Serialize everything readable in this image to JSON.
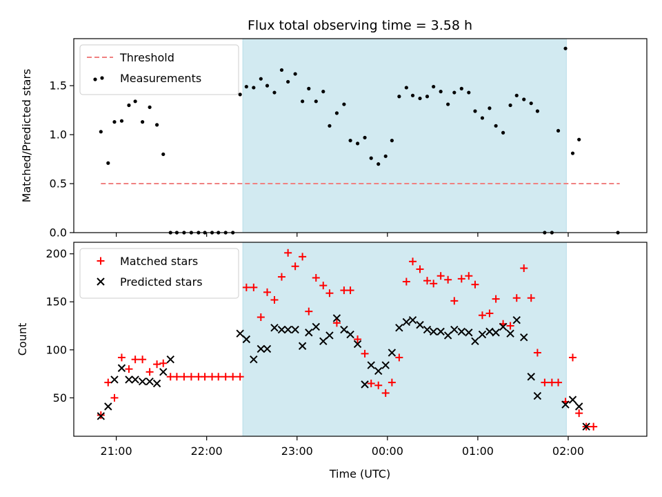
{
  "chart_data": {
    "title": "Flux total observing time = 3.58 h",
    "xlabel": "Time (UTC)",
    "x_axis": {
      "unit": "hours since 20:00 UTC",
      "range": [
        0.53,
        6.87
      ],
      "ticks": [
        {
          "value": 1,
          "label": "21:00"
        },
        {
          "value": 2,
          "label": "22:00"
        },
        {
          "value": 3,
          "label": "23:00"
        },
        {
          "value": 4,
          "label": "00:00"
        },
        {
          "value": 5,
          "label": "01:00"
        },
        {
          "value": 6,
          "label": "02:00"
        }
      ]
    },
    "shaded_interval": {
      "start": 2.4,
      "end": 5.98,
      "color": "#add8e6"
    },
    "panels": [
      {
        "type": "scatter",
        "ylabel": "Matched/Predicted stars",
        "ylim": [
          0,
          1.98
        ],
        "yticks": [
          {
            "value": 0,
            "label": "0.0"
          },
          {
            "value": 0.5,
            "label": "0.5"
          },
          {
            "value": 1.0,
            "label": "1.0"
          },
          {
            "value": 1.5,
            "label": "1.5"
          }
        ],
        "legend": {
          "position": "upper left"
        },
        "threshold": {
          "name": "Threshold",
          "value": 0.5,
          "x_range": [
            0.83,
            6.57
          ],
          "color": "#f08080"
        },
        "series": [
          {
            "name": "Measurements",
            "color": "#000000",
            "marker": "dot",
            "points": [
              [
                0.83,
                1.03
              ],
              [
                0.91,
                0.71
              ],
              [
                0.98,
                1.13
              ],
              [
                1.06,
                1.14
              ],
              [
                1.14,
                1.3
              ],
              [
                1.21,
                1.34
              ],
              [
                1.29,
                1.13
              ],
              [
                1.37,
                1.28
              ],
              [
                1.45,
                1.1
              ],
              [
                1.52,
                0.8
              ],
              [
                1.6,
                0
              ],
              [
                1.67,
                0
              ],
              [
                1.75,
                0
              ],
              [
                1.83,
                0
              ],
              [
                1.91,
                0
              ],
              [
                1.98,
                0
              ],
              [
                2.06,
                0
              ],
              [
                2.13,
                0
              ],
              [
                2.21,
                0
              ],
              [
                2.29,
                0
              ],
              [
                2.37,
                1.41
              ],
              [
                2.44,
                1.49
              ],
              [
                2.52,
                1.48
              ],
              [
                2.6,
                1.57
              ],
              [
                2.67,
                1.5
              ],
              [
                2.75,
                1.43
              ],
              [
                2.83,
                1.66
              ],
              [
                2.9,
                1.54
              ],
              [
                2.98,
                1.62
              ],
              [
                3.06,
                1.34
              ],
              [
                3.13,
                1.47
              ],
              [
                3.21,
                1.34
              ],
              [
                3.29,
                1.44
              ],
              [
                3.36,
                1.09
              ],
              [
                3.44,
                1.22
              ],
              [
                3.52,
                1.31
              ],
              [
                3.59,
                0.94
              ],
              [
                3.67,
                0.91
              ],
              [
                3.75,
                0.97
              ],
              [
                3.82,
                0.76
              ],
              [
                3.9,
                0.7
              ],
              [
                3.98,
                0.78
              ],
              [
                4.05,
                0.94
              ],
              [
                4.13,
                1.39
              ],
              [
                4.21,
                1.48
              ],
              [
                4.28,
                1.4
              ],
              [
                4.36,
                1.37
              ],
              [
                4.44,
                1.39
              ],
              [
                4.51,
                1.49
              ],
              [
                4.59,
                1.44
              ],
              [
                4.67,
                1.31
              ],
              [
                4.74,
                1.43
              ],
              [
                4.82,
                1.47
              ],
              [
                4.9,
                1.43
              ],
              [
                4.97,
                1.24
              ],
              [
                5.05,
                1.17
              ],
              [
                5.13,
                1.27
              ],
              [
                5.2,
                1.09
              ],
              [
                5.28,
                1.02
              ],
              [
                5.36,
                1.3
              ],
              [
                5.43,
                1.4
              ],
              [
                5.51,
                1.36
              ],
              [
                5.59,
                1.32
              ],
              [
                5.66,
                1.24
              ],
              [
                5.74,
                0
              ],
              [
                5.82,
                0
              ],
              [
                5.89,
                1.04
              ],
              [
                5.97,
                1.88
              ],
              [
                6.05,
                0.81
              ],
              [
                6.12,
                0.95
              ],
              [
                6.55,
                0
              ]
            ]
          }
        ]
      },
      {
        "type": "scatter",
        "ylabel": "Count",
        "ylim": [
          10,
          212
        ],
        "yticks": [
          {
            "value": 50,
            "label": "50"
          },
          {
            "value": 100,
            "label": "100"
          },
          {
            "value": 150,
            "label": "150"
          },
          {
            "value": 200,
            "label": "200"
          }
        ],
        "legend": {
          "position": "upper left"
        },
        "series": [
          {
            "name": "Matched stars",
            "color": "#ff0000",
            "marker": "plus",
            "points": [
              [
                0.83,
                32
              ],
              [
                0.91,
                66
              ],
              [
                0.98,
                50
              ],
              [
                1.06,
                92
              ],
              [
                1.14,
                80
              ],
              [
                1.21,
                90
              ],
              [
                1.29,
                90
              ],
              [
                1.37,
                77
              ],
              [
                1.45,
                85
              ],
              [
                1.52,
                86
              ],
              [
                1.6,
                72
              ],
              [
                1.67,
                72
              ],
              [
                1.75,
                72
              ],
              [
                1.83,
                72
              ],
              [
                1.91,
                72
              ],
              [
                1.98,
                72
              ],
              [
                2.06,
                72
              ],
              [
                2.13,
                72
              ],
              [
                2.21,
                72
              ],
              [
                2.29,
                72
              ],
              [
                2.37,
                72
              ],
              [
                2.44,
                165
              ],
              [
                2.52,
                165
              ],
              [
                2.6,
                134
              ],
              [
                2.67,
                160
              ],
              [
                2.75,
                152
              ],
              [
                2.83,
                176
              ],
              [
                2.9,
                201
              ],
              [
                2.98,
                187
              ],
              [
                3.06,
                197
              ],
              [
                3.13,
                140
              ],
              [
                3.21,
                175
              ],
              [
                3.29,
                167
              ],
              [
                3.36,
                159
              ],
              [
                3.44,
                128
              ],
              [
                3.52,
                162
              ],
              [
                3.59,
                162
              ],
              [
                3.67,
                111
              ],
              [
                3.75,
                96
              ],
              [
                3.82,
                65
              ],
              [
                3.9,
                63
              ],
              [
                3.98,
                55
              ],
              [
                4.05,
                66
              ],
              [
                4.13,
                92
              ],
              [
                4.21,
                171
              ],
              [
                4.28,
                192
              ],
              [
                4.36,
                184
              ],
              [
                4.44,
                172
              ],
              [
                4.51,
                169
              ],
              [
                4.59,
                177
              ],
              [
                4.67,
                173
              ],
              [
                4.74,
                151
              ],
              [
                4.82,
                174
              ],
              [
                4.9,
                177
              ],
              [
                4.97,
                168
              ],
              [
                5.05,
                136
              ],
              [
                5.13,
                138
              ],
              [
                5.2,
                153
              ],
              [
                5.28,
                127
              ],
              [
                5.36,
                125
              ],
              [
                5.43,
                154
              ],
              [
                5.51,
                185
              ],
              [
                5.59,
                154
              ],
              [
                5.66,
                97
              ],
              [
                5.74,
                66
              ],
              [
                5.82,
                66
              ],
              [
                5.89,
                66
              ],
              [
                5.97,
                46
              ],
              [
                6.05,
                92
              ],
              [
                6.12,
                34
              ],
              [
                6.2,
                20
              ],
              [
                6.28,
                20
              ]
            ]
          },
          {
            "name": "Predicted stars",
            "color": "#000000",
            "marker": "x",
            "points": [
              [
                0.83,
                31
              ],
              [
                0.91,
                41
              ],
              [
                0.98,
                69
              ],
              [
                1.06,
                81
              ],
              [
                1.14,
                69
              ],
              [
                1.21,
                69
              ],
              [
                1.29,
                67
              ],
              [
                1.37,
                67
              ],
              [
                1.45,
                65
              ],
              [
                1.52,
                77
              ],
              [
                1.6,
                90
              ],
              [
                2.37,
                117
              ],
              [
                2.44,
                111
              ],
              [
                2.52,
                90
              ],
              [
                2.6,
                101
              ],
              [
                2.67,
                101
              ],
              [
                2.75,
                123
              ],
              [
                2.83,
                121
              ],
              [
                2.9,
                121
              ],
              [
                2.98,
                121
              ],
              [
                3.06,
                104
              ],
              [
                3.13,
                118
              ],
              [
                3.21,
                124
              ],
              [
                3.29,
                109
              ],
              [
                3.36,
                115
              ],
              [
                3.44,
                133
              ],
              [
                3.52,
                121
              ],
              [
                3.59,
                116
              ],
              [
                3.67,
                106
              ],
              [
                3.75,
                64
              ],
              [
                3.82,
                84
              ],
              [
                3.9,
                78
              ],
              [
                3.98,
                84
              ],
              [
                4.05,
                97
              ],
              [
                4.13,
                123
              ],
              [
                4.21,
                129
              ],
              [
                4.28,
                131
              ],
              [
                4.36,
                126
              ],
              [
                4.44,
                121
              ],
              [
                4.51,
                119
              ],
              [
                4.59,
                119
              ],
              [
                4.67,
                115
              ],
              [
                4.74,
                121
              ],
              [
                4.82,
                119
              ],
              [
                4.9,
                118
              ],
              [
                4.97,
                109
              ],
              [
                5.05,
                116
              ],
              [
                5.13,
                119
              ],
              [
                5.2,
                118
              ],
              [
                5.28,
                124
              ],
              [
                5.36,
                117
              ],
              [
                5.43,
                131
              ],
              [
                5.51,
                113
              ],
              [
                5.59,
                72
              ],
              [
                5.66,
                52
              ],
              [
                5.97,
                43
              ],
              [
                6.05,
                48
              ],
              [
                6.12,
                41
              ],
              [
                6.2,
                20
              ]
            ]
          }
        ]
      }
    ]
  }
}
